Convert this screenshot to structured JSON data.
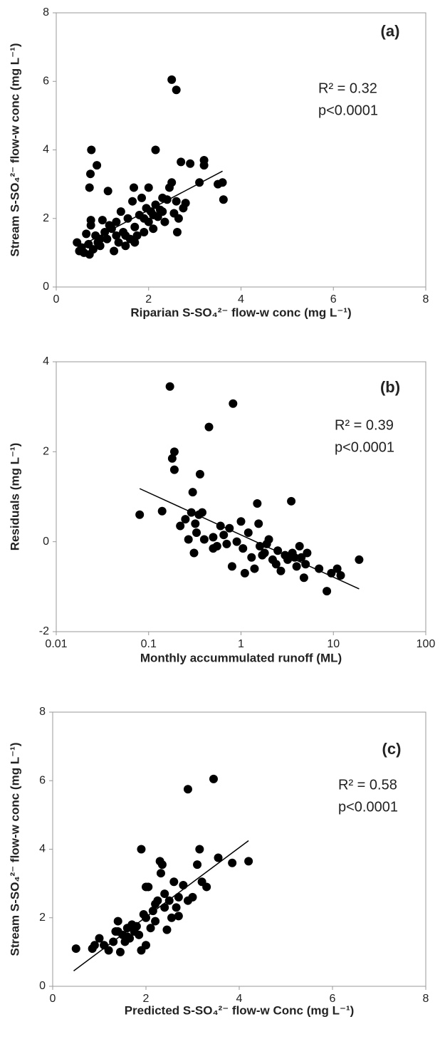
{
  "chart_data": [
    {
      "type": "scatter",
      "panel_label": "(a)",
      "annotations": [
        "R² = 0.32",
        "p<0.0001"
      ],
      "x_label": "Riparian S-SO₄²⁻ flow-w conc (mg L⁻¹)",
      "y_label": "Stream S-SO₄²⁻ flow-w conc  (mg L⁻¹)",
      "color": "#000000",
      "xscale": "linear",
      "xlim": [
        0,
        8
      ],
      "xticks": [
        0,
        2,
        4,
        6,
        8
      ],
      "ylim": [
        0,
        8
      ],
      "yticks": [
        0,
        2,
        4,
        6,
        8
      ],
      "x": [
        0.45,
        0.5,
        0.55,
        0.6,
        0.65,
        0.7,
        0.72,
        0.74,
        0.76,
        0.75,
        0.75,
        0.72,
        0.8,
        0.85,
        0.88,
        0.9,
        0.95,
        1.0,
        1.05,
        1.1,
        1.12,
        1.15,
        1.2,
        1.25,
        1.3,
        1.35,
        1.4,
        1.45,
        1.5,
        1.55,
        1.6,
        1.65,
        1.68,
        1.7,
        1.75,
        1.8,
        1.85,
        1.9,
        1.95,
        2.0,
        2.0,
        2.05,
        2.1,
        2.15,
        2.15,
        2.2,
        2.25,
        2.3,
        2.35,
        2.4,
        2.45,
        2.5,
        2.5,
        2.55,
        2.6,
        2.6,
        2.62,
        2.65,
        2.7,
        2.75,
        2.8,
        2.9,
        3.1,
        3.2,
        3.2,
        3.5,
        3.6,
        3.62,
        2.3,
        1.9,
        1.5,
        1.3,
        0.95,
        1.7,
        2.1
      ],
      "values": [
        1.3,
        1.05,
        1.15,
        1.0,
        1.55,
        1.25,
        2.9,
        3.3,
        4.0,
        1.8,
        1.95,
        0.95,
        1.1,
        1.5,
        3.55,
        1.3,
        1.2,
        1.95,
        1.6,
        1.4,
        2.8,
        1.8,
        1.7,
        1.05,
        1.5,
        1.3,
        2.2,
        1.6,
        1.2,
        2.0,
        1.4,
        2.5,
        2.9,
        1.75,
        1.5,
        2.1,
        2.6,
        1.6,
        2.3,
        2.9,
        1.9,
        2.2,
        1.7,
        4.0,
        2.4,
        2.05,
        2.25,
        2.6,
        1.9,
        2.55,
        2.9,
        6.05,
        3.05,
        2.15,
        5.75,
        2.5,
        1.6,
        2.0,
        3.65,
        2.3,
        2.45,
        3.6,
        3.05,
        3.7,
        3.55,
        3.0,
        3.05,
        2.55,
        2.2,
        2.0,
        1.5,
        1.9,
        1.4,
        1.3,
        2.1
      ],
      "trendline": {
        "x": [
          0.6,
          3.6
        ],
        "y": [
          1.25,
          3.38
        ]
      }
    },
    {
      "type": "scatter",
      "panel_label": "(b)",
      "annotations": [
        "R² = 0.39",
        "p<0.0001"
      ],
      "x_label": "Monthly accummulated runoff (ML)",
      "y_label": "Residuals (mg L⁻¹)",
      "color": "#000000",
      "xscale": "log",
      "xlim": [
        0.01,
        100
      ],
      "xticks": [
        0.01,
        0.1,
        1,
        10,
        100
      ],
      "ylim": [
        -2,
        4
      ],
      "yticks": [
        -2,
        0,
        2,
        4
      ],
      "x": [
        0.08,
        0.14,
        0.17,
        0.18,
        0.19,
        0.19,
        0.22,
        0.25,
        0.27,
        0.29,
        0.3,
        0.31,
        0.32,
        0.33,
        0.35,
        0.36,
        0.38,
        0.4,
        0.45,
        0.5,
        0.55,
        0.6,
        0.65,
        0.7,
        0.75,
        0.8,
        0.82,
        0.9,
        1.0,
        1.05,
        1.1,
        1.2,
        1.3,
        1.4,
        1.5,
        1.55,
        1.6,
        1.7,
        1.8,
        2.0,
        2.2,
        2.5,
        2.7,
        3.0,
        3.2,
        3.5,
        3.6,
        4.0,
        4.3,
        4.5,
        4.8,
        5.0,
        5.2,
        7.0,
        8.5,
        9.5,
        11.0,
        12.0,
        19.0,
        0.5,
        1.9,
        2.4,
        3.8
      ],
      "values": [
        0.6,
        0.68,
        3.45,
        1.85,
        2.0,
        1.6,
        0.35,
        0.5,
        0.05,
        0.65,
        1.1,
        -0.25,
        0.4,
        0.2,
        0.6,
        1.5,
        0.65,
        0.05,
        2.55,
        0.1,
        -0.1,
        0.35,
        0.15,
        -0.05,
        0.3,
        -0.55,
        3.07,
        0.0,
        0.45,
        -0.15,
        -0.7,
        0.2,
        -0.35,
        -0.6,
        0.85,
        0.4,
        -0.1,
        -0.3,
        -0.25,
        0.05,
        -0.4,
        -0.2,
        -0.65,
        -0.3,
        -0.4,
        0.9,
        -0.25,
        -0.55,
        -0.1,
        -0.35,
        -0.8,
        -0.5,
        -0.25,
        -0.6,
        -1.1,
        -0.7,
        -0.6,
        -0.75,
        -0.4,
        -0.15,
        -0.05,
        -0.5,
        -0.35
      ],
      "trendline": {
        "x": [
          0.08,
          19
        ],
        "y": [
          1.18,
          -1.05
        ]
      }
    },
    {
      "type": "scatter",
      "panel_label": "(c)",
      "annotations": [
        "R² = 0.58",
        "p<0.0001"
      ],
      "x_label": "Predicted S-SO₄²⁻ flow-w Conc (mg L⁻¹)",
      "y_label": "Stream S-SO₄²⁻ flow-w conc  (mg L⁻¹)",
      "color": "#000000",
      "xscale": "linear",
      "xlim": [
        0,
        8
      ],
      "xticks": [
        0,
        2,
        4,
        6,
        8
      ],
      "ylim": [
        0,
        8
      ],
      "yticks": [
        0,
        2,
        4,
        6,
        8
      ],
      "x": [
        0.5,
        0.85,
        0.9,
        1.0,
        1.1,
        1.2,
        1.3,
        1.35,
        1.4,
        1.45,
        1.5,
        1.55,
        1.6,
        1.65,
        1.7,
        1.75,
        1.8,
        1.85,
        1.9,
        1.9,
        1.95,
        2.0,
        2.0,
        2.05,
        2.1,
        2.15,
        2.2,
        2.25,
        2.3,
        2.32,
        2.35,
        2.4,
        2.45,
        2.5,
        2.55,
        2.6,
        2.65,
        2.7,
        2.8,
        2.9,
        2.9,
        3.0,
        3.1,
        3.15,
        3.2,
        3.3,
        3.45,
        3.55,
        3.85,
        4.2,
        2.2,
        1.6,
        2.4,
        2.0,
        1.4,
        2.7
      ],
      "values": [
        1.1,
        1.1,
        1.2,
        1.4,
        1.2,
        1.05,
        1.3,
        1.6,
        1.9,
        1.0,
        1.5,
        1.3,
        1.7,
        1.4,
        1.8,
        1.6,
        1.75,
        1.5,
        4.0,
        1.05,
        2.1,
        2.9,
        1.2,
        2.9,
        1.7,
        2.2,
        1.9,
        2.5,
        3.65,
        3.3,
        3.55,
        2.3,
        1.65,
        2.5,
        2.0,
        3.05,
        2.3,
        2.6,
        2.95,
        5.75,
        2.5,
        2.6,
        3.55,
        4.0,
        3.05,
        2.9,
        6.05,
        3.75,
        3.6,
        3.65,
        2.4,
        1.45,
        2.7,
        2.0,
        1.6,
        2.05
      ],
      "trendline": {
        "x": [
          0.45,
          4.2
        ],
        "y": [
          0.45,
          4.25
        ]
      }
    }
  ]
}
